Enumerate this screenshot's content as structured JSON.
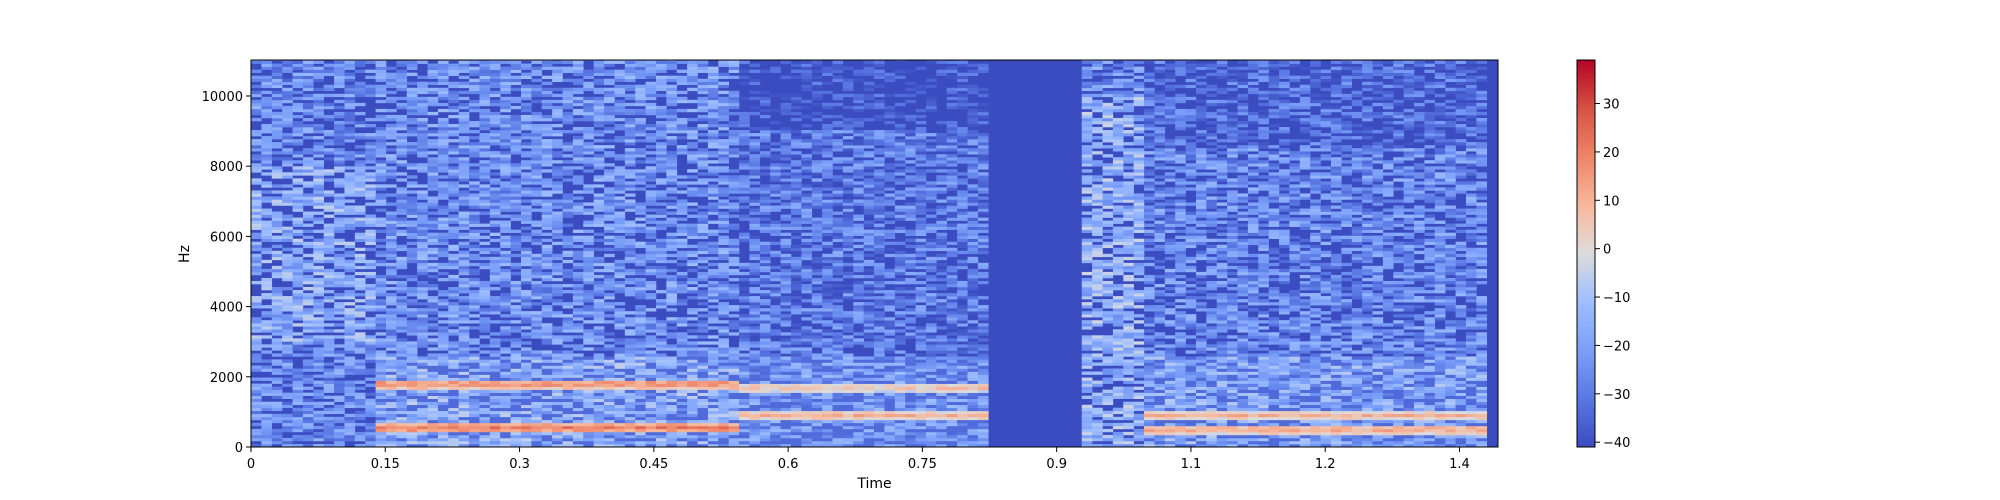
{
  "chart_data": {
    "type": "heatmap",
    "title": "",
    "xlabel": "Time",
    "ylabel": "Hz",
    "xlim": [
      0,
      1.393
    ],
    "ylim": [
      0,
      11025
    ],
    "x_ticks": [
      0,
      0.15,
      0.3,
      0.45,
      0.6,
      0.75,
      0.9,
      1.05,
      1.2,
      1.35
    ],
    "x_tick_labels": [
      "0",
      "0.15",
      "0.3",
      "0.45",
      "0.6",
      "0.75",
      "0.9",
      "1.1",
      "1.2",
      "1.4"
    ],
    "y_ticks": [
      0,
      2000,
      4000,
      6000,
      8000,
      10000
    ],
    "y_tick_labels": [
      "0",
      "2000",
      "4000",
      "6000",
      "8000",
      "10000"
    ],
    "colormap": "coolwarm",
    "colorbar": {
      "range": [
        -41,
        39
      ],
      "ticks": [
        30,
        20,
        10,
        0,
        -10,
        -20,
        -30,
        -40
      ],
      "tick_labels": [
        "30",
        "20",
        "10",
        "0",
        "−10",
        "−20",
        "−30",
        "−40"
      ]
    },
    "grid": false,
    "background_level_db": -40,
    "silent_interval_s": [
      0.82,
      0.93
    ],
    "segments": [
      {
        "start_s": 0.0,
        "end_s": 0.14,
        "mean_level_db": -20,
        "peak_level_db": -10,
        "energy_band_hz": [
          3000,
          8000
        ]
      },
      {
        "start_s": 0.14,
        "end_s": 0.54,
        "mean_level_db": -22,
        "peak_level_db": 20,
        "strong_harmonics_hz": [
          550,
          1800
        ]
      },
      {
        "start_s": 0.54,
        "end_s": 0.82,
        "mean_level_db": -28,
        "peak_level_db": 10,
        "strong_harmonics_hz": [
          900,
          1700
        ]
      },
      {
        "start_s": 0.93,
        "end_s": 1.0,
        "mean_level_db": -18,
        "peak_level_db": -5,
        "energy_band_hz": [
          0,
          10000
        ]
      },
      {
        "start_s": 1.0,
        "end_s": 1.39,
        "mean_level_db": -24,
        "peak_level_db": 12,
        "strong_harmonics_hz": [
          500,
          900
        ]
      }
    ]
  }
}
